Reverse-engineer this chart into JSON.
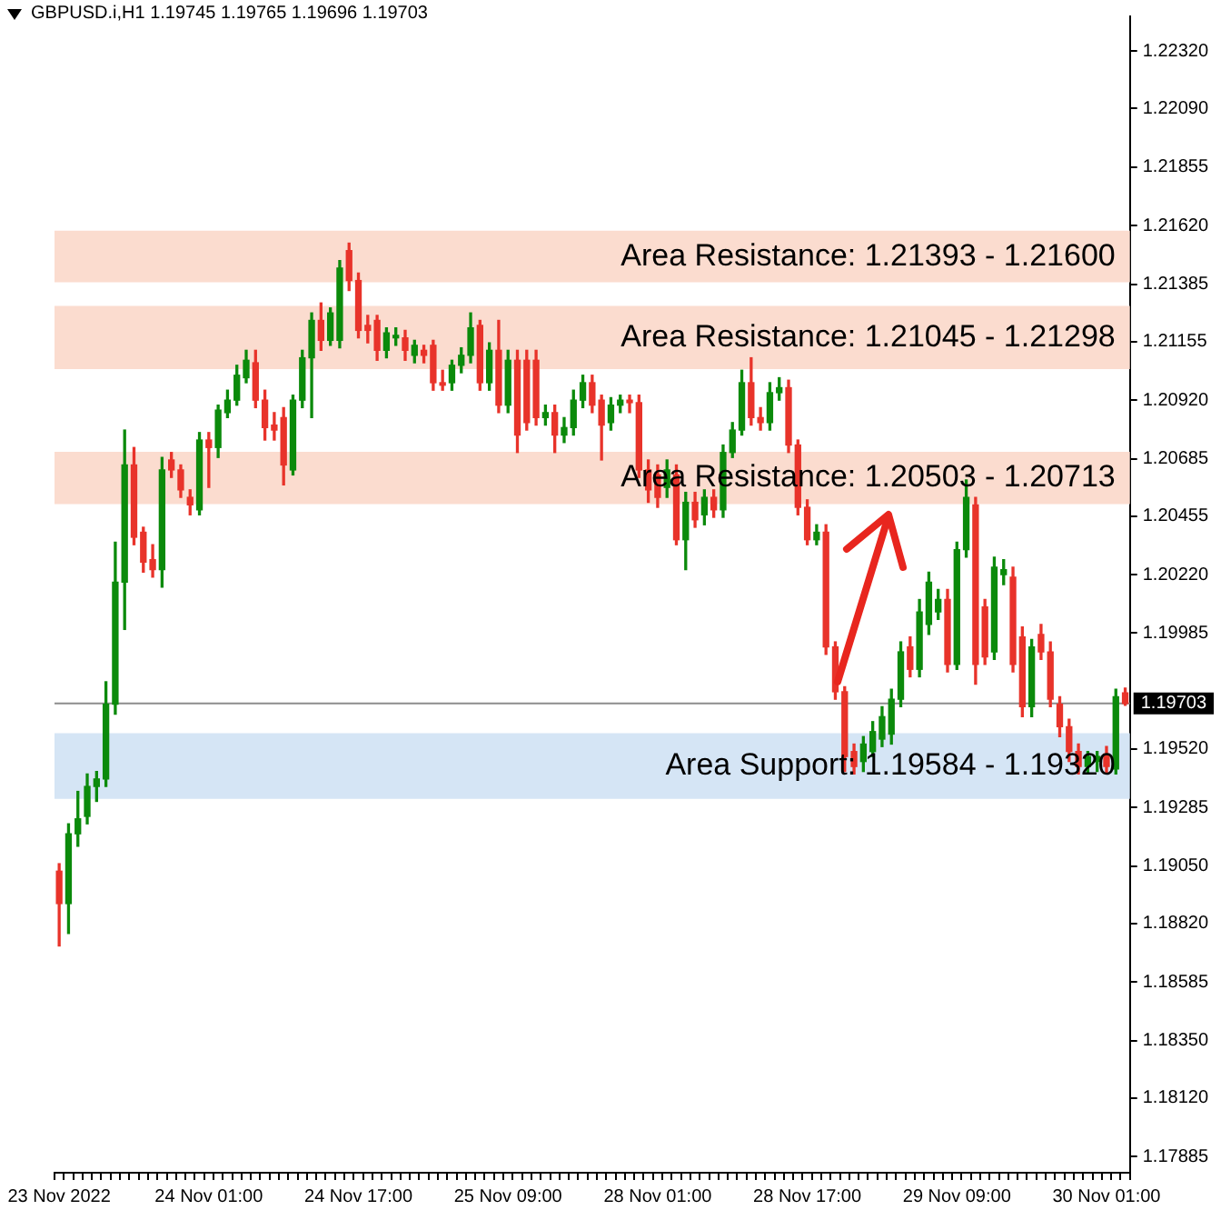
{
  "chart_data": {
    "type": "candlestick",
    "title": "GBPUSD.i,H1  1.19745 1.19765 1.19696 1.19703",
    "categories": [
      "23 Nov 2022",
      null,
      null,
      null,
      null,
      null,
      null,
      null,
      null,
      null,
      null,
      null,
      null,
      null,
      null,
      null,
      "24 Nov 01:00",
      null,
      null,
      null,
      null,
      null,
      null,
      null,
      null,
      null,
      null,
      null,
      null,
      null,
      null,
      null,
      "24 Nov 17:00",
      null,
      null,
      null,
      null,
      null,
      null,
      null,
      null,
      null,
      null,
      null,
      null,
      null,
      null,
      null,
      "25 Nov 09:00",
      null,
      null,
      null,
      null,
      null,
      null,
      null,
      null,
      null,
      null,
      null,
      null,
      null,
      null,
      null,
      "28 Nov 01:00",
      null,
      null,
      null,
      null,
      null,
      null,
      null,
      null,
      null,
      null,
      null,
      null,
      null,
      null,
      null,
      "28 Nov 17:00",
      null,
      null,
      null,
      null,
      null,
      null,
      null,
      null,
      null,
      null,
      null,
      null,
      null,
      null,
      null,
      "29 Nov 09:00",
      null,
      null,
      null,
      null,
      null,
      null,
      null,
      null,
      null,
      null,
      null,
      null,
      null,
      null,
      null,
      "30 Nov 01:00",
      null,
      null
    ],
    "ohlc": [
      [
        1.1903,
        1.1906,
        1.1873,
        1.189
      ],
      [
        1.189,
        1.1922,
        1.1878,
        1.1918
      ],
      [
        1.1918,
        1.1935,
        1.1913,
        1.1924
      ],
      [
        1.1925,
        1.1942,
        1.1922,
        1.1937
      ],
      [
        1.1937,
        1.1943,
        1.1931,
        1.194
      ],
      [
        1.194,
        1.1979,
        1.1937,
        1.197
      ],
      [
        1.197,
        1.2035,
        1.1966,
        1.2019
      ],
      [
        1.2019,
        1.208,
        1.2,
        1.2066
      ],
      [
        1.2066,
        1.2073,
        1.2034,
        1.2037
      ],
      [
        1.2039,
        1.2041,
        1.2023,
        1.2027
      ],
      [
        1.2028,
        1.2034,
        1.2021,
        1.2024
      ],
      [
        1.2024,
        1.2069,
        1.2017,
        1.2064
      ],
      [
        1.2068,
        1.2071,
        1.2061,
        1.2064
      ],
      [
        1.2064,
        1.2066,
        1.2053,
        1.2056
      ],
      [
        1.2053,
        1.2056,
        1.2046,
        1.205
      ],
      [
        1.2048,
        1.2079,
        1.2046,
        1.2076
      ],
      [
        1.2076,
        1.2079,
        1.2057,
        1.2073
      ],
      [
        1.2073,
        1.209,
        1.2069,
        1.2088
      ],
      [
        1.2087,
        1.2096,
        1.2085,
        1.2092
      ],
      [
        1.2092,
        1.2106,
        1.209,
        1.2102
      ],
      [
        1.2101,
        1.2112,
        1.2099,
        1.2108
      ],
      [
        1.2107,
        1.2112,
        1.2089,
        1.2092
      ],
      [
        1.2092,
        1.2096,
        1.2076,
        1.2081
      ],
      [
        1.2082,
        1.2087,
        1.2076,
        1.208
      ],
      [
        1.2085,
        1.2089,
        1.2058,
        1.2066
      ],
      [
        1.2064,
        1.2094,
        1.2062,
        1.2092
      ],
      [
        1.2092,
        1.2112,
        1.2089,
        1.2109
      ],
      [
        1.2109,
        1.2127,
        1.2085,
        1.2124
      ],
      [
        1.2124,
        1.2131,
        1.2112,
        1.2116
      ],
      [
        1.2116,
        1.2129,
        1.2114,
        1.2127
      ],
      [
        1.2116,
        1.2148,
        1.2113,
        1.2145
      ],
      [
        1.2152,
        1.2155,
        1.2136,
        1.214
      ],
      [
        1.214,
        1.2143,
        1.2117,
        1.212
      ],
      [
        1.2122,
        1.2126,
        1.2115,
        1.212
      ],
      [
        1.2124,
        1.2126,
        1.2108,
        1.2112
      ],
      [
        1.2112,
        1.2121,
        1.2109,
        1.2119
      ],
      [
        1.2117,
        1.2121,
        1.2114,
        1.2118
      ],
      [
        1.2117,
        1.212,
        1.2108,
        1.2112
      ],
      [
        1.211,
        1.2116,
        1.2107,
        1.2114
      ],
      [
        1.2112,
        1.2114,
        1.2107,
        1.211
      ],
      [
        1.2114,
        1.2116,
        1.2096,
        1.2099
      ],
      [
        1.2099,
        1.2104,
        1.2096,
        1.2098
      ],
      [
        1.2099,
        1.2108,
        1.2096,
        1.2106
      ],
      [
        1.2106,
        1.2113,
        1.2103,
        1.211
      ],
      [
        1.211,
        1.2127,
        1.2107,
        1.2121
      ],
      [
        1.2122,
        1.2124,
        1.2096,
        1.2099
      ],
      [
        1.2099,
        1.2115,
        1.2096,
        1.2112
      ],
      [
        1.2112,
        1.2124,
        1.2087,
        1.209
      ],
      [
        1.209,
        1.2112,
        1.2087,
        1.2108
      ],
      [
        1.2108,
        1.2112,
        1.2071,
        1.2078
      ],
      [
        1.2108,
        1.2112,
        1.208,
        1.2083
      ],
      [
        1.2108,
        1.2112,
        1.2082,
        1.2085
      ],
      [
        1.2085,
        1.209,
        1.2082,
        1.2087
      ],
      [
        1.2087,
        1.209,
        1.2071,
        1.2078
      ],
      [
        1.2078,
        1.2085,
        1.2075,
        1.2081
      ],
      [
        1.2081,
        1.2096,
        1.2078,
        1.2092
      ],
      [
        1.2092,
        1.2102,
        1.2089,
        1.2099
      ],
      [
        1.2099,
        1.2102,
        1.2087,
        1.209
      ],
      [
        1.2092,
        1.2094,
        1.2068,
        1.2082
      ],
      [
        1.2083,
        1.2093,
        1.208,
        1.209
      ],
      [
        1.209,
        1.2094,
        1.2087,
        1.2092
      ],
      [
        1.2092,
        1.2094,
        1.2087,
        1.2091
      ],
      [
        1.2091,
        1.2094,
        1.2061,
        1.2064
      ],
      [
        1.2064,
        1.2068,
        1.2051,
        1.2056
      ],
      [
        1.2062,
        1.2066,
        1.2049,
        1.2053
      ],
      [
        1.2057,
        1.2068,
        1.2053,
        1.2064
      ],
      [
        1.2062,
        1.2066,
        1.2034,
        1.2036
      ],
      [
        1.2036,
        1.2055,
        1.2024,
        1.2051
      ],
      [
        1.2051,
        1.2055,
        1.2041,
        1.2044
      ],
      [
        1.2046,
        1.2056,
        1.2042,
        1.2053
      ],
      [
        1.2053,
        1.2056,
        1.2045,
        1.2048
      ],
      [
        1.2048,
        1.2074,
        1.2045,
        1.2071
      ],
      [
        1.2071,
        1.2083,
        1.2069,
        1.208
      ],
      [
        1.208,
        1.2104,
        1.2078,
        1.2099
      ],
      [
        1.2099,
        1.2109,
        1.2082,
        1.2085
      ],
      [
        1.2085,
        1.2089,
        1.208,
        1.2083
      ],
      [
        1.2083,
        1.2099,
        1.208,
        1.2095
      ],
      [
        1.2095,
        1.2101,
        1.2092,
        1.2097
      ],
      [
        1.2097,
        1.21,
        1.2071,
        1.2074
      ],
      [
        1.2074,
        1.2076,
        1.2046,
        1.2049
      ],
      [
        1.2049,
        1.2052,
        1.2034,
        1.2036
      ],
      [
        1.2036,
        1.2042,
        1.2034,
        1.2039
      ],
      [
        1.2039,
        1.2042,
        1.199,
        1.1993
      ],
      [
        1.1993,
        1.1995,
        1.1972,
        1.1975
      ],
      [
        1.1975,
        1.1977,
        1.1943,
        1.1949
      ],
      [
        1.1951,
        1.1954,
        1.1942,
        1.1945
      ],
      [
        1.1947,
        1.1957,
        1.1943,
        1.1954
      ],
      [
        1.1951,
        1.1963,
        1.1949,
        1.1959
      ],
      [
        1.1956,
        1.1969,
        1.1953,
        1.1965
      ],
      [
        1.1958,
        1.1976,
        1.1954,
        1.1972
      ],
      [
        1.1972,
        1.1995,
        1.1969,
        1.1991
      ],
      [
        1.1993,
        1.1997,
        1.1981,
        1.1984
      ],
      [
        1.1984,
        1.2012,
        1.1981,
        1.2007
      ],
      [
        1.2002,
        1.2023,
        1.1998,
        1.2019
      ],
      [
        1.2007,
        1.2016,
        1.2004,
        1.2012
      ],
      [
        1.2012,
        1.2016,
        1.1983,
        1.1986
      ],
      [
        1.1986,
        1.2035,
        1.1984,
        1.2032
      ],
      [
        1.2032,
        1.206,
        1.2029,
        1.2053
      ],
      [
        1.205,
        1.2053,
        1.1978,
        1.1986
      ],
      [
        1.2009,
        1.2012,
        1.1986,
        1.1989
      ],
      [
        1.1991,
        1.2029,
        1.1988,
        1.2025
      ],
      [
        1.2022,
        1.2028,
        1.2018,
        1.2024
      ],
      [
        1.2021,
        1.2025,
        1.1983,
        1.1986
      ],
      [
        1.1997,
        1.2001,
        1.1965,
        1.1969
      ],
      [
        1.1969,
        1.1996,
        1.1965,
        1.1993
      ],
      [
        1.1998,
        1.2002,
        1.1988,
        1.1991
      ],
      [
        1.1991,
        1.1995,
        1.1969,
        1.1972
      ],
      [
        1.197,
        1.1973,
        1.1957,
        1.1961
      ],
      [
        1.1961,
        1.1964,
        1.1947,
        1.1951
      ],
      [
        1.1951,
        1.1954,
        1.1942,
        1.1945
      ],
      [
        1.1945,
        1.1951,
        1.1942,
        1.1949
      ],
      [
        1.1947,
        1.1951,
        1.1943,
        1.1949
      ],
      [
        1.195,
        1.1953,
        1.1942,
        1.1945
      ],
      [
        1.1944,
        1.1976,
        1.1942,
        1.1973
      ],
      [
        1.19745,
        1.19765,
        1.19696,
        1.19703
      ]
    ],
    "colors": [
      "#e8332a",
      "#0b8a0b",
      "#0b8a0b",
      "#0b8a0b",
      "#0b8a0b",
      "#0b8a0b",
      "#0b8a0b",
      "#0b8a0b",
      "#e8332a",
      "#e8332a",
      "#e8332a",
      "#0b8a0b",
      "#e8332a",
      "#e8332a",
      "#e8332a",
      "#0b8a0b",
      "#e8332a",
      "#0b8a0b",
      "#0b8a0b",
      "#0b8a0b",
      "#0b8a0b",
      "#e8332a",
      "#e8332a",
      "#e8332a",
      "#e8332a",
      "#0b8a0b",
      "#0b8a0b",
      "#0b8a0b",
      "#e8332a",
      "#0b8a0b",
      "#0b8a0b",
      "#e8332a",
      "#e8332a",
      "#e8332a",
      "#e8332a",
      "#0b8a0b",
      "#0b8a0b",
      "#e8332a",
      "#0b8a0b",
      "#e8332a",
      "#e8332a",
      "#e8332a",
      "#0b8a0b",
      "#0b8a0b",
      "#0b8a0b",
      "#e8332a",
      "#0b8a0b",
      "#e8332a",
      "#0b8a0b",
      "#e8332a",
      "#e8332a",
      "#e8332a",
      "#0b8a0b",
      "#e8332a",
      "#0b8a0b",
      "#0b8a0b",
      "#0b8a0b",
      "#e8332a",
      "#e8332a",
      "#0b8a0b",
      "#0b8a0b",
      "#e8332a",
      "#e8332a",
      "#e8332a",
      "#e8332a",
      "#0b8a0b",
      "#e8332a",
      "#0b8a0b",
      "#e8332a",
      "#0b8a0b",
      "#e8332a",
      "#0b8a0b",
      "#0b8a0b",
      "#0b8a0b",
      "#e8332a",
      "#e8332a",
      "#0b8a0b",
      "#0b8a0b",
      "#e8332a",
      "#e8332a",
      "#e8332a",
      "#0b8a0b",
      "#e8332a",
      "#e8332a",
      "#e8332a",
      "#e8332a",
      "#0b8a0b",
      "#0b8a0b",
      "#0b8a0b",
      "#0b8a0b",
      "#0b8a0b",
      "#e8332a",
      "#0b8a0b",
      "#0b8a0b",
      "#0b8a0b",
      "#e8332a",
      "#0b8a0b",
      "#0b8a0b",
      "#e8332a",
      "#e8332a",
      "#0b8a0b",
      "#0b8a0b",
      "#e8332a",
      "#e8332a",
      "#0b8a0b",
      "#e8332a",
      "#e8332a",
      "#e8332a",
      "#e8332a",
      "#e8332a",
      "#0b8a0b",
      "#0b8a0b",
      "#e8332a",
      "#0b8a0b",
      "#e8332a"
    ],
    "ylim": [
      1.1782,
      1.2246
    ],
    "yticks": [
      {
        "value": 1.2232,
        "label": "1.22320"
      },
      {
        "value": 1.2209,
        "label": "1.22090"
      },
      1.21855,
      {
        "value": 1.2162,
        "label": "1.21620"
      },
      1.21385,
      1.21155,
      {
        "value": 1.2092,
        "label": "1.20920"
      },
      1.20685,
      1.20455,
      {
        "value": 1.2022,
        "label": "1.20220"
      },
      1.19985,
      {
        "value": 1.1952,
        "label": "1.19520"
      },
      1.19285,
      {
        "value": 1.1905,
        "label": "1.19050"
      },
      {
        "value": 1.1882,
        "label": "1.18820"
      },
      1.18585,
      {
        "value": 1.1835,
        "label": "1.18350"
      },
      {
        "value": 1.1812,
        "label": "1.18120"
      },
      1.17885
    ],
    "bands": [
      {
        "axis": "y",
        "from": 1.21393,
        "to": 1.216,
        "label": "Area Resistance: 1.21393 - 1.21600",
        "color": "#fbdccf"
      },
      {
        "axis": "y",
        "from": 1.21045,
        "to": 1.21298,
        "label": "Area Resistance: 1.21045 - 1.21298",
        "color": "#fbdccf"
      },
      {
        "axis": "y",
        "from": 1.20503,
        "to": 1.20713,
        "label": "Area Resistance: 1.20503 - 1.20713",
        "color": "#fbdccf"
      },
      {
        "axis": "y",
        "from": 1.1932,
        "to": 1.19584,
        "label": "Area Support: 1.19584 - 1.19320",
        "color": "#d5e5f5"
      }
    ],
    "ref_lines": [
      {
        "axis": "y",
        "value": 1.19703,
        "label": "1.19703",
        "color": "#8c8c8c"
      }
    ]
  }
}
